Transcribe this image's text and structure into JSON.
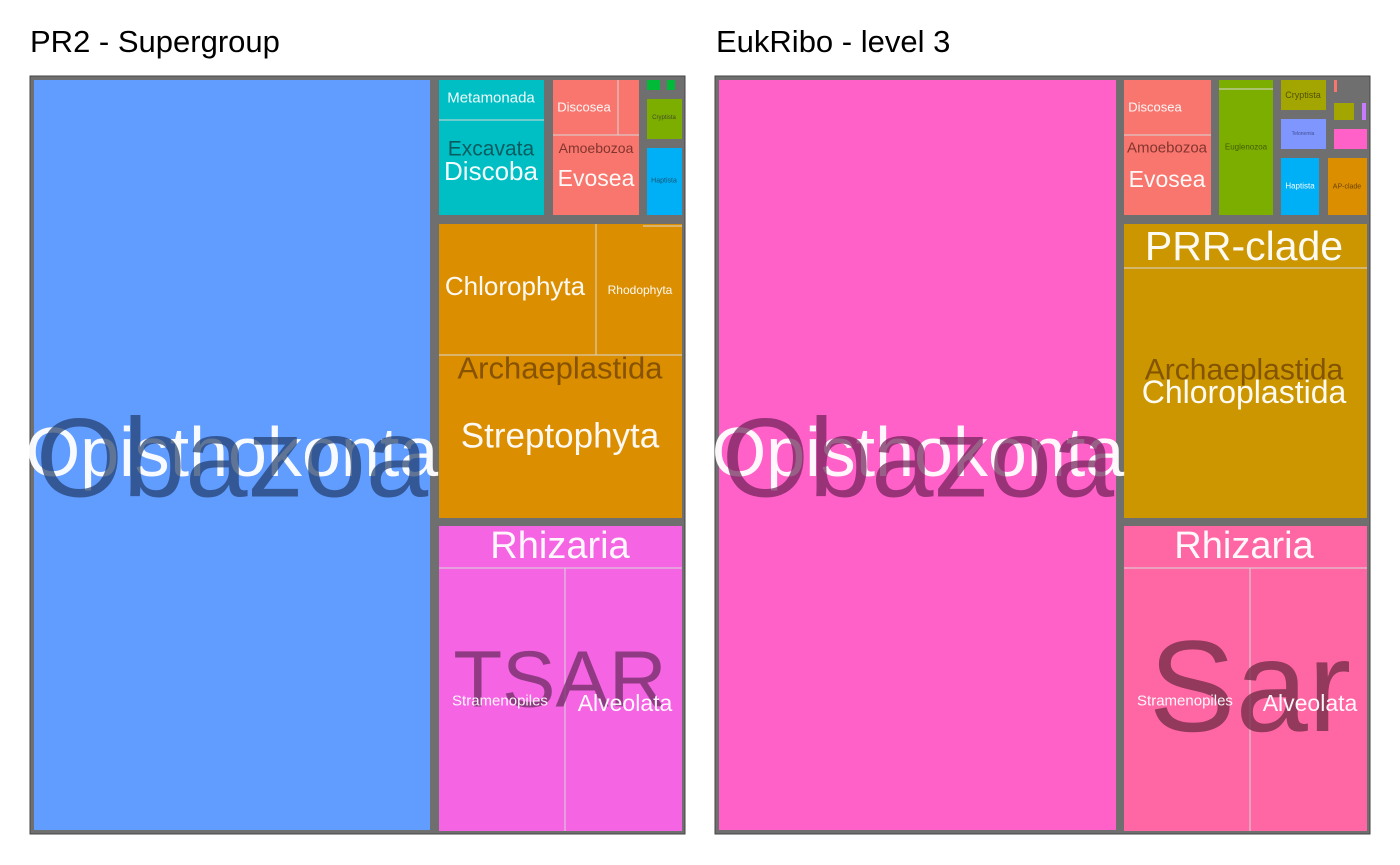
{
  "chart_data": [
    {
      "type": "treemap",
      "title": "PR2 - Supergroup",
      "colors": {
        "frame": "#6f6f6f",
        "Obazoa": "#619CFF",
        "Discoba": "#00BFC4",
        "Amoebozoa": "#F8766D",
        "Archaeplastida": "#DB8E00",
        "TSAR": "#F564E3",
        "Cryptista": "#7CAE00",
        "Haptista": "#00B0F6",
        "small": "#00BA38"
      },
      "groups": [
        {
          "name": "Obazoa",
          "value": 52.0,
          "color": "#619CFF",
          "children": [
            {
              "name": "Opisthokonta",
              "value": 52.0
            }
          ]
        },
        {
          "name": "Discoba",
          "value": 2.2,
          "color": "#00BFC4",
          "children": [
            {
              "name": "Metamonada",
              "value": 0.5
            },
            {
              "name": "Excavata",
              "value": 1.7
            }
          ]
        },
        {
          "name": "Amoebozoa",
          "value": 1.9,
          "color": "#F8766D",
          "children": [
            {
              "name": "Discosea",
              "value": 0.8
            },
            {
              "name": "Evosea",
              "value": 1.1
            }
          ]
        },
        {
          "name": "Cryptista",
          "value": 0.3,
          "color": "#7CAE00",
          "children": [
            {
              "name": "Cryptista",
              "value": 0.3
            }
          ]
        },
        {
          "name": "Haptista",
          "value": 0.4,
          "color": "#00B0F6",
          "children": [
            {
              "name": "Haptista",
              "value": 0.4
            }
          ]
        },
        {
          "name": "Archaeplastida",
          "value": 12.5,
          "color": "#DB8E00",
          "children": [
            {
              "name": "Chlorophyta",
              "value": 4.6
            },
            {
              "name": "Rhodophyta",
              "value": 2.5
            },
            {
              "name": "Streptophyta",
              "value": 5.4
            }
          ]
        },
        {
          "name": "TSAR",
          "value": 12.6,
          "color": "#F564E3",
          "children": [
            {
              "name": "Rhizaria",
              "value": 2.0
            },
            {
              "name": "Stramenopiles",
              "value": 5.6
            },
            {
              "name": "Alveolata",
              "value": 5.0
            }
          ]
        }
      ]
    },
    {
      "type": "treemap",
      "title": "EukRibo - level 3",
      "colors": {
        "frame": "#6f6f6f",
        "Obazoa": "#FF61C9",
        "Amoebozoa": "#F8766D",
        "Euglenozoa": "#7CAE00",
        "Cryptista": "#A3A500",
        "Telonemia": "#7F96FF",
        "Haptista": "#00B0F6",
        "AP-clade": "#DB8E00",
        "Chloroplastida": "#CC9600",
        "Sar": "#FF67A4"
      },
      "groups": [
        {
          "name": "Obazoa",
          "value": 61.0,
          "color": "#FF61C9",
          "children": [
            {
              "name": "Opisthokonta",
              "value": 61.0
            }
          ]
        },
        {
          "name": "Amoebozoa",
          "value": 2.0,
          "color": "#F8766D",
          "children": [
            {
              "name": "Discosea",
              "value": 0.8
            },
            {
              "name": "Evosea",
              "value": 1.2
            }
          ]
        },
        {
          "name": "Discoba",
          "value": 1.2,
          "color": "#7CAE00",
          "children": [
            {
              "name": "Euglenozoa",
              "value": 1.2
            }
          ]
        },
        {
          "name": "Cryptista",
          "value": 0.5,
          "color": "#A3A500",
          "children": [
            {
              "name": "Cryptista",
              "value": 0.5
            }
          ]
        },
        {
          "name": "Haptista",
          "value": 0.7,
          "color": "#00B0F6",
          "children": [
            {
              "name": "Telonemia",
              "value": 0.3
            },
            {
              "name": "Haptista",
              "value": 0.4
            }
          ]
        },
        {
          "name": "AP-clade",
          "value": 0.3,
          "color": "#DB8E00",
          "children": [
            {
              "name": "AP-clade",
              "value": 0.3
            }
          ]
        },
        {
          "name": "Archaeplastida",
          "value": 14.0,
          "color": "#CC9600",
          "children": [
            {
              "name": "PRR-clade",
              "value": 1.8
            },
            {
              "name": "Chloroplastida",
              "value": 12.2
            }
          ]
        },
        {
          "name": "Sar",
          "value": 12.5,
          "color": "#FF67A4",
          "children": [
            {
              "name": "Rhizaria",
              "value": 2.0
            },
            {
              "name": "Stramenopiles",
              "value": 5.5
            },
            {
              "name": "Alveolata",
              "value": 5.0
            }
          ]
        }
      ]
    }
  ]
}
